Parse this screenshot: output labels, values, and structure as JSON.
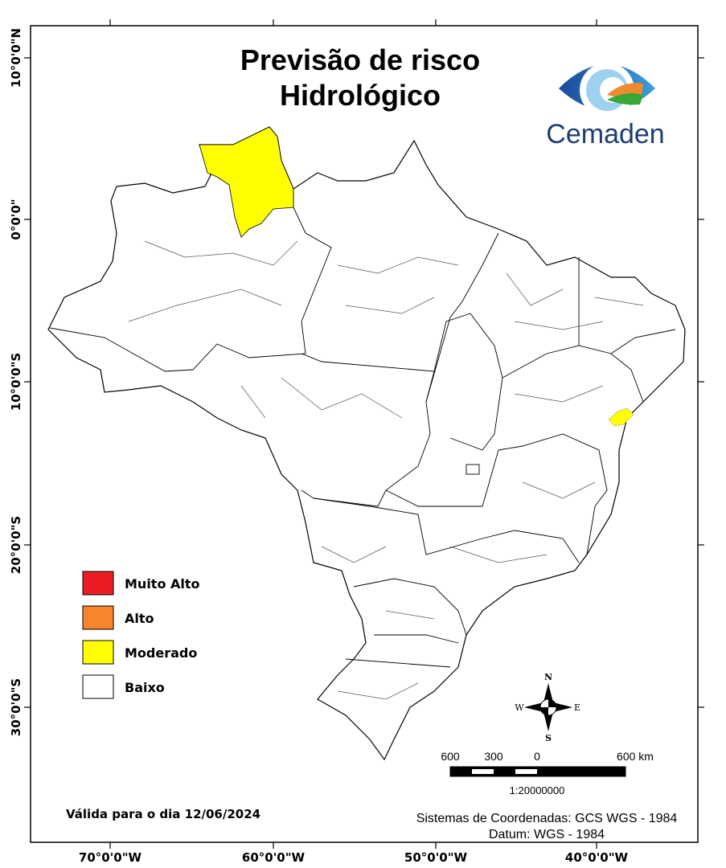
{
  "title": [
    "Previsão de risco",
    "Hidrológico"
  ],
  "logo": "Cemaden",
  "axis_left": [
    "10°0'0\"N",
    "0°0'0\"",
    "10°0'0\"S",
    "20°0'0\"S",
    "30°0'0\"S"
  ],
  "axis_bottom": [
    "70°0'0\"W",
    "60°0'0\"W",
    "50°0'0\"W",
    "40°0'0\"W"
  ],
  "legend": [
    {
      "label": "Muito Alto",
      "color": "#ed1c24"
    },
    {
      "label": "Alto",
      "color": "#f7852c"
    },
    {
      "label": "Moderado",
      "color": "#ffff00"
    },
    {
      "label": "Baixo",
      "color": "#ffffff"
    }
  ],
  "compass": [
    "N",
    "S",
    "W",
    "E"
  ],
  "scale_labels": [
    "600",
    "300",
    "0",
    "600 km"
  ],
  "scale_ratio": "1:20000000",
  "valid_date": "Válida para o dia 12/06/2024",
  "coordinate_system": [
    "Sistemas de Coordenadas: GCS WGS - 1984",
    "Datum: WGS - 1984"
  ]
}
